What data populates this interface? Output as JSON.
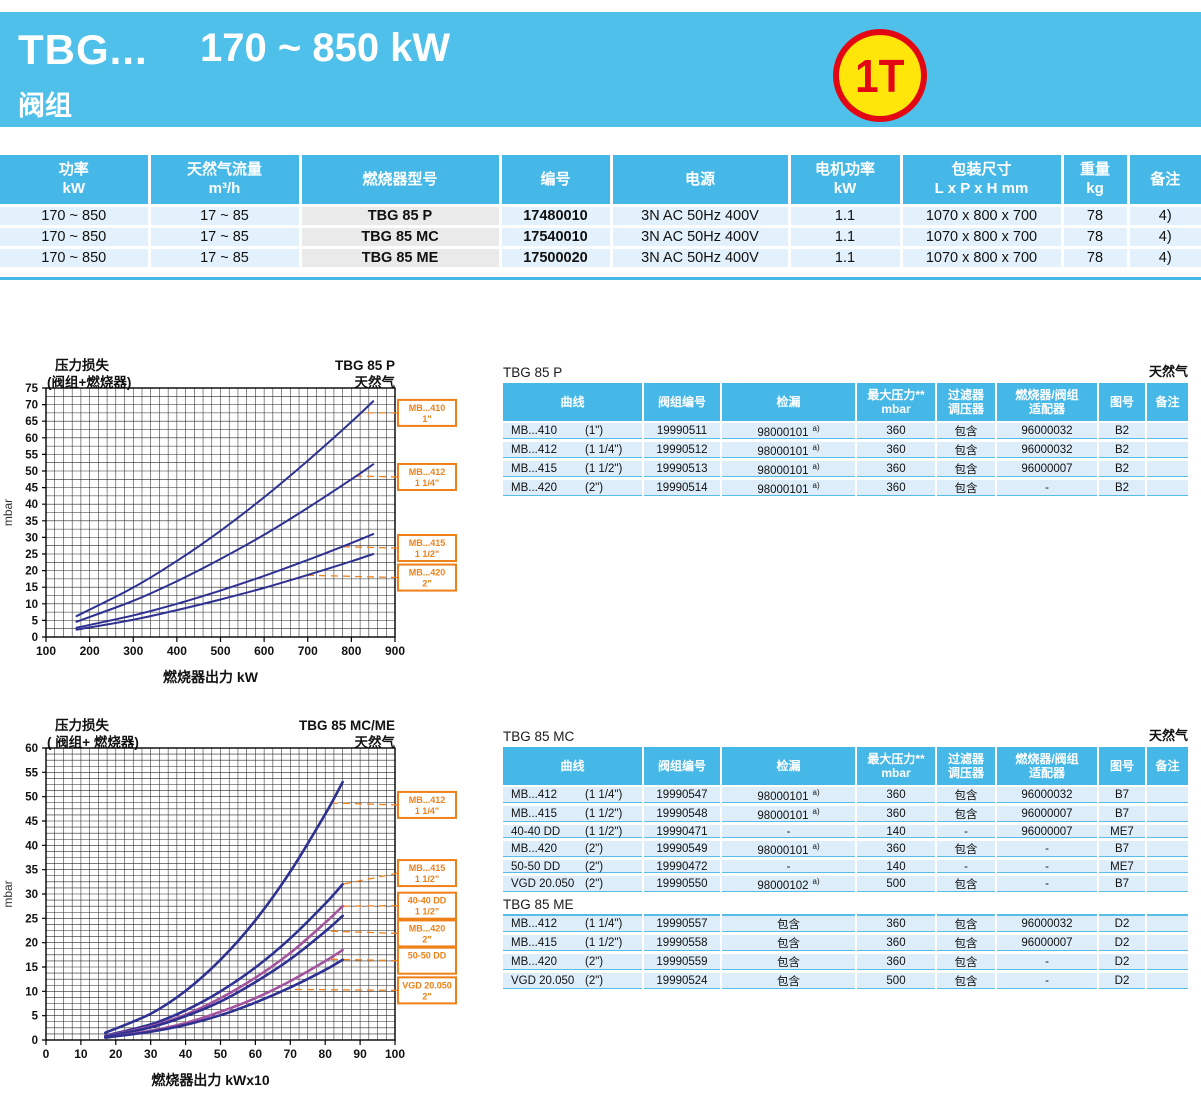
{
  "banner": {
    "model": "TBG...",
    "power_range": "170 ~ 850 kW",
    "subtitle": "阀组",
    "badge": "1T"
  },
  "colors": {
    "banner_blue": "#4fc0ea",
    "table_header_blue": "#45b8e8",
    "row_pale_blue": "#e2f1fb",
    "model_cell_gray": "#eaeaea",
    "orange": "#ef8018",
    "curve_blue": "#2e3192",
    "curve_purple": "#a4539f",
    "badge_yellow": "#ffe60a",
    "badge_red": "#e30613"
  },
  "main_table": {
    "headers": [
      {
        "l1": "功率",
        "l2": "kW"
      },
      {
        "l1": "天然气流量",
        "l2": "m³/h"
      },
      {
        "l1": "燃烧器型号",
        "l2": ""
      },
      {
        "l1": "编号",
        "l2": ""
      },
      {
        "l1": "电源",
        "l2": ""
      },
      {
        "l1": "电机功率",
        "l2": "kW"
      },
      {
        "l1": "包装尺寸",
        "l2": "L x P x H  mm"
      },
      {
        "l1": "重量",
        "l2": "kg"
      },
      {
        "l1": "备注",
        "l2": ""
      }
    ],
    "rows": [
      [
        "170 ~ 850",
        "17 ~ 85",
        "TBG 85 P",
        "17480010",
        "3N AC 50Hz 400V",
        "1.1",
        "1070 x 800 x 700",
        "78",
        "4)"
      ],
      [
        "170 ~ 850",
        "17 ~ 85",
        "TBG 85 MC",
        "17540010",
        "3N AC 50Hz 400V",
        "1.1",
        "1070 x 800 x 700",
        "78",
        "4)"
      ],
      [
        "170 ~ 850",
        "17 ~ 85",
        "TBG 85 ME",
        "17500020",
        "3N AC 50Hz 400V",
        "1.1",
        "1070 x 800 x 700",
        "78",
        "4)"
      ]
    ]
  },
  "valve_header": [
    {
      "t": "曲线",
      "t2": ""
    },
    {
      "t": "阀组编号",
      "t2": ""
    },
    {
      "t": "检漏",
      "t2": ""
    },
    {
      "t": "最大压力**",
      "t2": "mbar"
    },
    {
      "t": "过滤器",
      "t2": "调压器"
    },
    {
      "t": "燃烧器/阀组",
      "t2": "适配器"
    },
    {
      "t": "图号",
      "t2": ""
    },
    {
      "t": "备注",
      "t2": ""
    }
  ],
  "tables": {
    "p": {
      "title": "TBG 85 P",
      "gas": "天然气",
      "rows": [
        [
          "MB...410",
          "(1\")",
          "19990511",
          "98000101",
          "a)",
          "360",
          "包含",
          "96000032",
          "B2",
          ""
        ],
        [
          "MB...412",
          "(1 1/4\")",
          "19990512",
          "98000101",
          "a)",
          "360",
          "包含",
          "96000032",
          "B2",
          ""
        ],
        [
          "MB...415",
          "(1 1/2\")",
          "19990513",
          "98000101",
          "a)",
          "360",
          "包含",
          "96000007",
          "B2",
          ""
        ],
        [
          "MB...420",
          "(2\")",
          "19990514",
          "98000101",
          "a)",
          "360",
          "包含",
          "-",
          "B2",
          ""
        ]
      ]
    },
    "mc": {
      "title": "TBG 85 MC",
      "gas": "天然气",
      "rows": [
        [
          "MB...412",
          "(1 1/4\")",
          "19990547",
          "98000101",
          "a)",
          "360",
          "包含",
          "96000032",
          "B7",
          ""
        ],
        [
          "MB...415",
          "(1 1/2\")",
          "19990548",
          "98000101",
          "a)",
          "360",
          "包含",
          "96000007",
          "B7",
          ""
        ],
        [
          "40-40 DD",
          "(1 1/2\")",
          "19990471",
          "-",
          "",
          "140",
          "-",
          "96000007",
          "ME7",
          ""
        ],
        [
          "MB...420",
          "(2\")",
          "19990549",
          "98000101",
          "a)",
          "360",
          "包含",
          "-",
          "B7",
          ""
        ],
        [
          "50-50 DD",
          "(2\")",
          "19990472",
          "-",
          "",
          "140",
          "-",
          "-",
          "ME7",
          ""
        ],
        [
          "VGD 20.050",
          "(2\")",
          "19990550",
          "98000102",
          "a)",
          "500",
          "包含",
          "-",
          "B7",
          ""
        ]
      ]
    },
    "me": {
      "title": "TBG 85 ME",
      "rows": [
        [
          "MB...412",
          "(1 1/4\")",
          "19990557",
          "包含",
          "",
          "360",
          "包含",
          "96000032",
          "D2",
          ""
        ],
        [
          "MB...415",
          "(1 1/2\")",
          "19990558",
          "包含",
          "",
          "360",
          "包含",
          "96000007",
          "D2",
          ""
        ],
        [
          "MB...420",
          "(2\")",
          "19990559",
          "包含",
          "",
          "360",
          "包含",
          "-",
          "D2",
          ""
        ],
        [
          "VGD 20.050",
          "(2\")",
          "19990524",
          "包含",
          "",
          "500",
          "包含",
          "-",
          "D2",
          ""
        ]
      ]
    }
  },
  "chart_data": [
    {
      "type": "line",
      "title_left1": "压力损失",
      "title_left2": "(阀组+燃烧器)",
      "title_right1": "TBG 85 P",
      "title_right2": "天然气",
      "xlabel": "燃烧器出力  kW",
      "ylabel": "mbar",
      "xmin": 100,
      "xmax": 900,
      "xstep": 100,
      "xminor": 20,
      "ymin": 0,
      "ymax": 75,
      "ystep": 5,
      "yminor": 2.5,
      "grid": true,
      "legend_position": "right-boxes",
      "x": [
        170,
        300,
        400,
        500,
        600,
        700,
        800,
        850
      ],
      "series": [
        {
          "name": "MB...410 1\"",
          "label": [
            "MB...410",
            "1\""
          ],
          "color": "#2e3192",
          "width": 2,
          "y": [
            6.3,
            14.9,
            22.9,
            32.0,
            42.1,
            53.1,
            64.8,
            71.0
          ],
          "label_y": 67.5,
          "leader": [
            818,
            67.5
          ]
        },
        {
          "name": "MB...412 1 1/4\"",
          "label": [
            "MB...412",
            "1 1/4\""
          ],
          "color": "#2e3192",
          "width": 2,
          "y": [
            4.6,
            10.9,
            16.8,
            23.5,
            30.8,
            38.9,
            47.5,
            52.0
          ],
          "label_y": 48.2,
          "leader": [
            808,
            48.5
          ]
        },
        {
          "name": "MB...415 1 1/2\"",
          "label": [
            "MB...415",
            "1 1/2\""
          ],
          "color": "#2e3192",
          "width": 2,
          "y": [
            2.8,
            6.5,
            10.0,
            14.0,
            18.4,
            23.2,
            28.3,
            31.0
          ],
          "label_y": 26.8,
          "leader": [
            775,
            27.2
          ]
        },
        {
          "name": "MB...420 2\"",
          "label": [
            "MB...420",
            "2\""
          ],
          "color": "#2e3192",
          "width": 2,
          "y": [
            2.2,
            5.2,
            8.1,
            11.3,
            14.8,
            18.7,
            22.8,
            25.0
          ],
          "label_y": 17.9,
          "leader": [
            700,
            18.6
          ]
        }
      ]
    },
    {
      "type": "line",
      "title_left1": "压力损失",
      "title_left2": "( 阀组+ 燃烧器)",
      "title_right1": "TBG 85 MC/ME",
      "title_right2": "天然气",
      "xlabel": "燃烧器出力  kWx10",
      "ylabel": "mbar",
      "xmin": 0,
      "xmax": 100,
      "xstep": 10,
      "xminor": 2.5,
      "ymin": 0,
      "ymax": 60,
      "ystep": 5,
      "yminor": 1.25,
      "grid": true,
      "legend_position": "right-boxes",
      "x": [
        17,
        30,
        40,
        50,
        60,
        70,
        80,
        85
      ],
      "series": [
        {
          "name": "MB...412 1 1/4\"",
          "label": [
            "MB...412",
            "1 1/4\""
          ],
          "color": "#2e3192",
          "width": 2.6,
          "y": [
            1.5,
            5.4,
            10.1,
            16.5,
            24.6,
            34.6,
            46.4,
            53.0
          ],
          "label_y": 48.3,
          "leader": [
            82,
            48.7
          ]
        },
        {
          "name": "MB...415 1 1/2\"",
          "label": [
            "MB...415",
            "1 1/2\""
          ],
          "color": "#2e3192",
          "width": 2.6,
          "y": [
            0.9,
            3.2,
            6.1,
            10.0,
            14.9,
            20.9,
            28.0,
            32.0
          ],
          "label_y": 34.3,
          "leader": [
            85,
            32.0
          ]
        },
        {
          "name": "40-40 DD 1 1/2\"",
          "label": [
            "40-40 DD",
            "1 1/2\""
          ],
          "color": "#a4539f",
          "width": 2.6,
          "y": [
            0.8,
            2.8,
            5.2,
            8.6,
            12.8,
            17.9,
            24.1,
            27.5
          ],
          "label_y": 27.6,
          "leader": [
            85,
            27.5
          ]
        },
        {
          "name": "MB...420 2\"",
          "label": [
            "MB...420",
            "2\""
          ],
          "color": "#2e3192",
          "width": 2.6,
          "y": [
            0.7,
            2.6,
            4.9,
            7.9,
            11.9,
            16.6,
            22.3,
            25.5
          ],
          "label_y": 21.9,
          "leader": [
            80,
            22.4
          ]
        },
        {
          "name": "50-50 DD",
          "label": [
            "50-50 DD"
          ],
          "color": "#a4539f",
          "width": 2.6,
          "y": [
            0.5,
            1.9,
            3.5,
            5.8,
            8.6,
            12.1,
            16.2,
            18.5
          ],
          "label_y": 16.3,
          "leader": [
            80,
            16.6
          ]
        },
        {
          "name": "VGD 20.050 2\"",
          "label": [
            "VGD 20.050",
            "2\""
          ],
          "color": "#2e3192",
          "width": 2.6,
          "y": [
            0.5,
            1.7,
            3.1,
            5.1,
            7.7,
            10.8,
            14.4,
            16.5
          ],
          "label_y": 10.2,
          "leader": [
            70,
            10.4
          ]
        }
      ]
    }
  ]
}
